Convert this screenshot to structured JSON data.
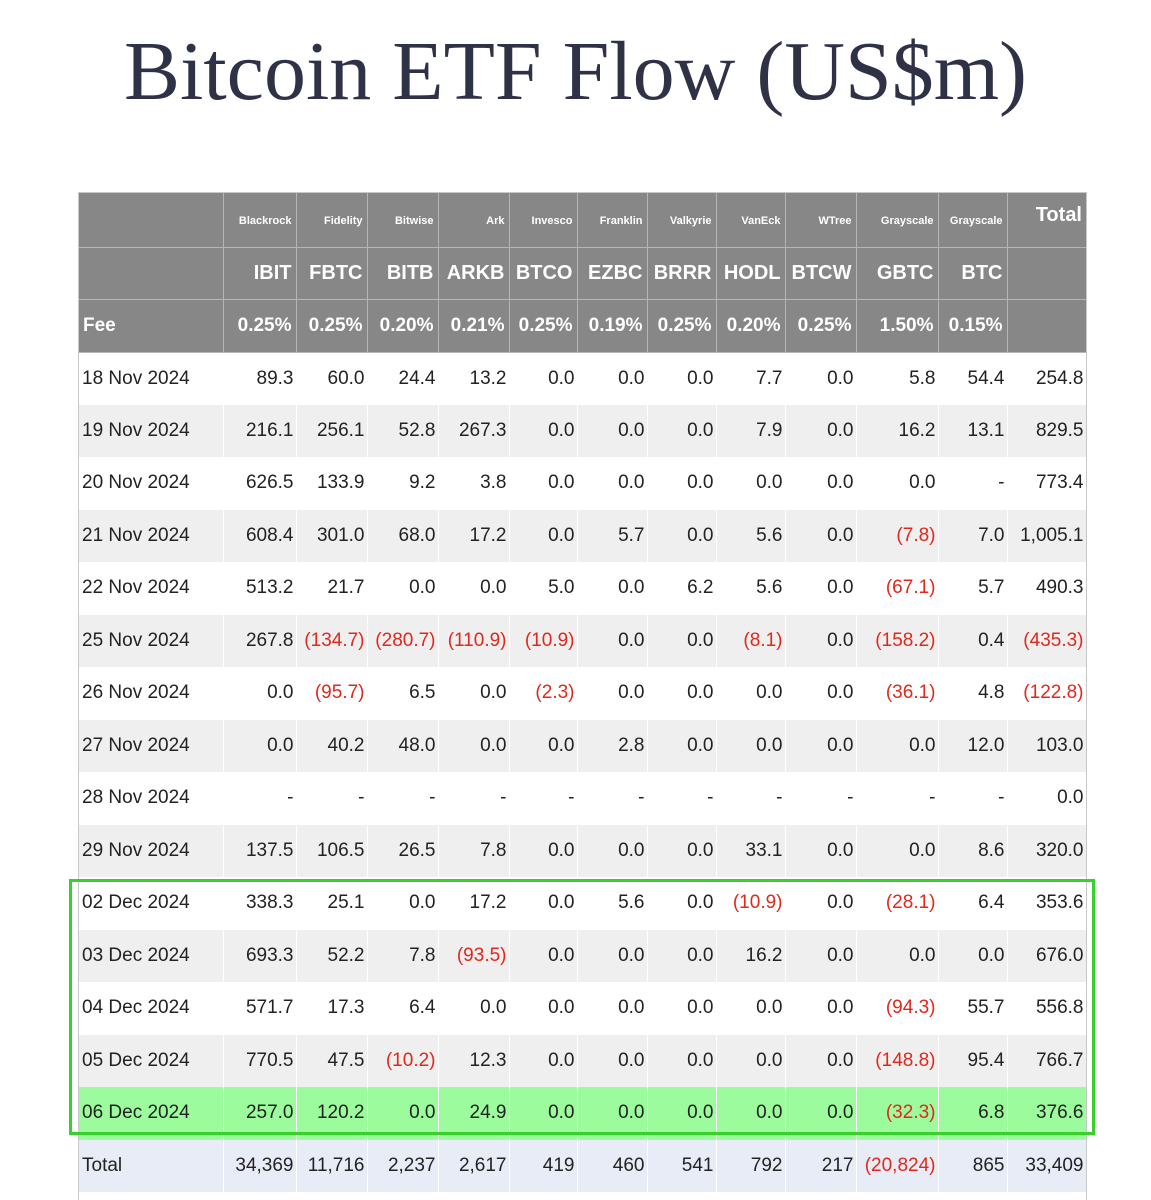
{
  "title": "Bitcoin ETF Flow (US$m)",
  "header": {
    "issuers": [
      "Blackrock",
      "Fidelity",
      "Bitwise",
      "Ark",
      "Invesco",
      "Franklin",
      "Valkyrie",
      "VanEck",
      "WTree",
      "Grayscale",
      "Grayscale"
    ],
    "total_label": "Total",
    "tickers": [
      "IBIT",
      "FBTC",
      "BITB",
      "ARKB",
      "BTCO",
      "EZBC",
      "BRRR",
      "HODL",
      "BTCW",
      "GBTC",
      "BTC"
    ],
    "fee_label": "Fee",
    "fees": [
      "0.25%",
      "0.25%",
      "0.20%",
      "0.21%",
      "0.25%",
      "0.19%",
      "0.25%",
      "0.20%",
      "0.25%",
      "1.50%",
      "0.15%"
    ]
  },
  "rows": [
    {
      "date": "18 Nov 2024",
      "values": [
        "89.3",
        "60.0",
        "24.4",
        "13.2",
        "0.0",
        "0.0",
        "0.0",
        "7.7",
        "0.0",
        "5.8",
        "54.4",
        "254.8"
      ]
    },
    {
      "date": "19 Nov 2024",
      "values": [
        "216.1",
        "256.1",
        "52.8",
        "267.3",
        "0.0",
        "0.0",
        "0.0",
        "7.9",
        "0.0",
        "16.2",
        "13.1",
        "829.5"
      ]
    },
    {
      "date": "20 Nov 2024",
      "values": [
        "626.5",
        "133.9",
        "9.2",
        "3.8",
        "0.0",
        "0.0",
        "0.0",
        "0.0",
        "0.0",
        "0.0",
        "-",
        "773.4"
      ]
    },
    {
      "date": "21 Nov 2024",
      "values": [
        "608.4",
        "301.0",
        "68.0",
        "17.2",
        "0.0",
        "5.7",
        "0.0",
        "5.6",
        "0.0",
        "(7.8)",
        "7.0",
        "1,005.1"
      ]
    },
    {
      "date": "22 Nov 2024",
      "values": [
        "513.2",
        "21.7",
        "0.0",
        "0.0",
        "5.0",
        "0.0",
        "6.2",
        "5.6",
        "0.0",
        "(67.1)",
        "5.7",
        "490.3"
      ]
    },
    {
      "date": "25 Nov 2024",
      "values": [
        "267.8",
        "(134.7)",
        "(280.7)",
        "(110.9)",
        "(10.9)",
        "0.0",
        "0.0",
        "(8.1)",
        "0.0",
        "(158.2)",
        "0.4",
        "(435.3)"
      ]
    },
    {
      "date": "26 Nov 2024",
      "values": [
        "0.0",
        "(95.7)",
        "6.5",
        "0.0",
        "(2.3)",
        "0.0",
        "0.0",
        "0.0",
        "0.0",
        "(36.1)",
        "4.8",
        "(122.8)"
      ]
    },
    {
      "date": "27 Nov 2024",
      "values": [
        "0.0",
        "40.2",
        "48.0",
        "0.0",
        "0.0",
        "2.8",
        "0.0",
        "0.0",
        "0.0",
        "0.0",
        "12.0",
        "103.0"
      ]
    },
    {
      "date": "28 Nov 2024",
      "values": [
        "-",
        "-",
        "-",
        "-",
        "-",
        "-",
        "-",
        "-",
        "-",
        "-",
        "-",
        "0.0"
      ]
    },
    {
      "date": "29 Nov 2024",
      "values": [
        "137.5",
        "106.5",
        "26.5",
        "7.8",
        "0.0",
        "0.0",
        "0.0",
        "33.1",
        "0.0",
        "0.0",
        "8.6",
        "320.0"
      ]
    },
    {
      "date": "02 Dec 2024",
      "values": [
        "338.3",
        "25.1",
        "0.0",
        "17.2",
        "0.0",
        "5.6",
        "0.0",
        "(10.9)",
        "0.0",
        "(28.1)",
        "6.4",
        "353.6"
      ]
    },
    {
      "date": "03 Dec 2024",
      "values": [
        "693.3",
        "52.2",
        "7.8",
        "(93.5)",
        "0.0",
        "0.0",
        "0.0",
        "16.2",
        "0.0",
        "0.0",
        "0.0",
        "676.0"
      ]
    },
    {
      "date": "04 Dec 2024",
      "values": [
        "571.7",
        "17.3",
        "6.4",
        "0.0",
        "0.0",
        "0.0",
        "0.0",
        "0.0",
        "0.0",
        "(94.3)",
        "55.7",
        "556.8"
      ]
    },
    {
      "date": "05 Dec 2024",
      "values": [
        "770.5",
        "47.5",
        "(10.2)",
        "12.3",
        "0.0",
        "0.0",
        "0.0",
        "0.0",
        "0.0",
        "(148.8)",
        "95.4",
        "766.7"
      ]
    },
    {
      "date": "06 Dec 2024",
      "values": [
        "257.0",
        "120.2",
        "0.0",
        "24.9",
        "0.0",
        "0.0",
        "0.0",
        "0.0",
        "0.0",
        "(32.3)",
        "6.8",
        "376.6"
      ]
    }
  ],
  "total_row": {
    "label": "Total",
    "values": [
      "34,369",
      "11,716",
      "2,237",
      "2,617",
      "419",
      "460",
      "541",
      "792",
      "217",
      "(20,824)",
      "865",
      "33,409"
    ]
  },
  "colors": {
    "header_bg": "#878787",
    "negative": "#e0281c",
    "highlight_row": "#9cfb9c",
    "highlight_box": "#38d12b",
    "total_bg": "#e8ecf7",
    "title": "#2f3246"
  }
}
